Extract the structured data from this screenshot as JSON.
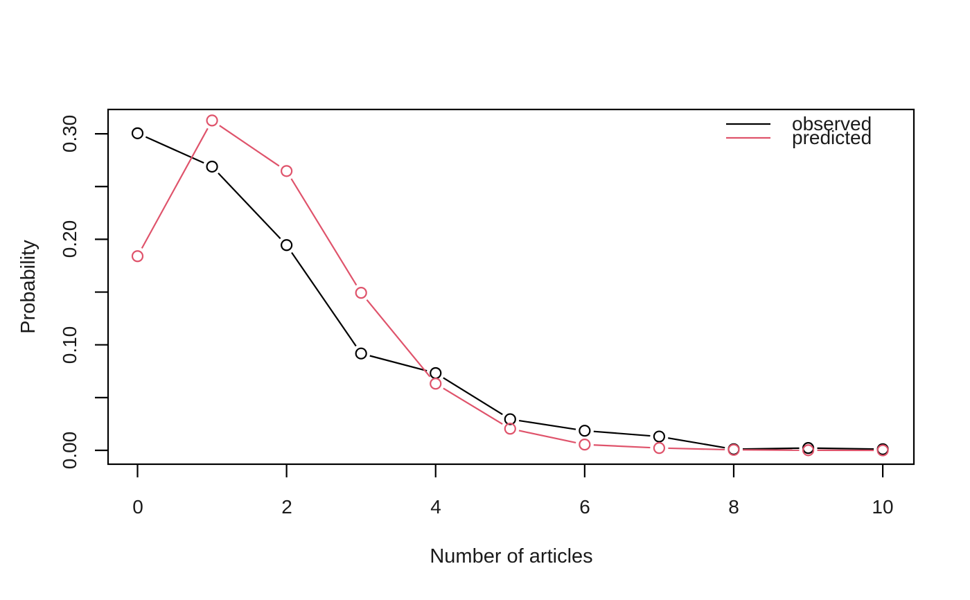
{
  "chart_data": {
    "type": "line",
    "title": "",
    "xlabel": "Number of articles",
    "ylabel": "Probability",
    "x": [
      0,
      1,
      2,
      3,
      4,
      5,
      6,
      7,
      8,
      9,
      10
    ],
    "series": [
      {
        "name": "observed",
        "color": "#000000",
        "marker": "open-circle",
        "values": [
          0.3005,
          0.2689,
          0.1945,
          0.0918,
          0.0732,
          0.0295,
          0.0186,
          0.0131,
          0.0011,
          0.0022,
          0.0011
        ]
      },
      {
        "name": "predicted",
        "color": "#DF536B",
        "marker": "open-circle",
        "values": [
          0.184,
          0.3126,
          0.2647,
          0.1493,
          0.0632,
          0.0205,
          0.0055,
          0.0022,
          0.0005,
          0.0001,
          0.0
        ]
      }
    ],
    "xlim": [
      0,
      10
    ],
    "ylim": [
      0,
      0.3126
    ],
    "x_ticks": [
      0,
      2,
      4,
      6,
      8,
      10
    ],
    "x_tick_labels": [
      "0",
      "2",
      "4",
      "6",
      "8",
      "10"
    ],
    "y_ticks": [
      0,
      0.05,
      0.1,
      0.15,
      0.2,
      0.25,
      0.3
    ],
    "y_tick_values_labeled": [
      0,
      0.1,
      0.2,
      0.3
    ],
    "y_tick_labels": [
      "0.00",
      "0.10",
      "0.20",
      "0.30"
    ],
    "grid": "off",
    "legend": {
      "position": "top-right-inside",
      "border": "none",
      "entries": [
        {
          "label": "observed"
        },
        {
          "label": "predicted"
        }
      ]
    }
  }
}
